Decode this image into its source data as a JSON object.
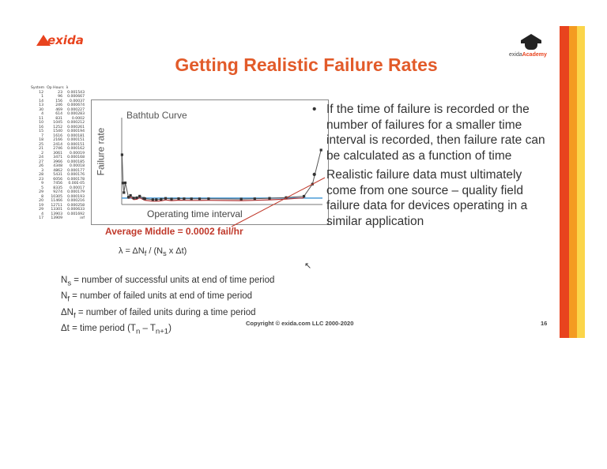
{
  "slide": {
    "title": "Getting Realistic Failure Rates",
    "logo": {
      "text": "exida"
    },
    "academy": {
      "prefix": "exida",
      "suffix": "Academy"
    },
    "stripe_colors": [
      "#e8431e",
      "#f49b20",
      "#fbd54a"
    ],
    "title_color": "#e25b2a",
    "accent_color": "#c0392b",
    "table": {
      "headers": [
        "System",
        "Op Hours",
        "λ"
      ],
      "rows": [
        [
          "12",
          "23",
          "0.001543"
        ],
        [
          "1",
          "96",
          "0.000667"
        ],
        [
          "14",
          "156",
          "0.00037"
        ],
        [
          "13",
          "246",
          "0.000674"
        ],
        [
          "30",
          "469",
          "0.000227"
        ],
        [
          "4",
          "614",
          "0.000283"
        ],
        [
          "11",
          "831",
          "0.0002"
        ],
        [
          "10",
          "1045",
          "0.000212"
        ],
        [
          "16",
          "1252",
          "0.000261"
        ],
        [
          "15",
          "1540",
          "0.000194"
        ],
        [
          "7",
          "1616",
          "0.000181"
        ],
        [
          "18",
          "2166",
          "0.000151"
        ],
        [
          "25",
          "2414",
          "0.000151"
        ],
        [
          "21",
          "2746",
          "0.000162"
        ],
        [
          "2",
          "3061",
          "0.00019"
        ],
        [
          "24",
          "3471",
          "0.000168"
        ],
        [
          "27",
          "3966",
          "0.000185"
        ],
        [
          "26",
          "4348",
          "0.00018"
        ],
        [
          "3",
          "4862",
          "0.000177"
        ],
        [
          "28",
          "5431",
          "0.000176"
        ],
        [
          "23",
          "6056",
          "0.000178"
        ],
        [
          "9",
          "7456",
          "0.00E-05"
        ],
        [
          "5",
          "8335",
          "0.00017"
        ],
        [
          "29",
          "9274",
          "0.000179"
        ],
        [
          "8",
          "10305",
          "0.000193"
        ],
        [
          "20",
          "11466",
          "0.000216"
        ],
        [
          "19",
          "12711",
          "0.000258"
        ],
        [
          "29",
          "13301",
          "0.000633"
        ],
        [
          "4",
          "13903",
          "0.001692"
        ],
        [
          "17",
          "13909",
          "inf"
        ]
      ]
    },
    "chart": {
      "title": "Bathtub Curve",
      "ylabel": "Failure rate",
      "xlabel": "Operating time interval"
    },
    "chart_data": {
      "type": "line",
      "title": "Bathtub Curve",
      "xlabel": "Operating time interval",
      "ylabel": "Failure rate",
      "series": [
        {
          "values": [
            0.001543,
            0.000667,
            0.00037,
            0.000674,
            0.000227,
            0.000283,
            0.0002,
            0.000212,
            0.000261,
            0.000194,
            0.000181,
            0.000151,
            0.000151,
            0.000162,
            0.00019,
            0.000168,
            0.000185,
            0.00018,
            0.000177,
            0.000176,
            0.000178,
            0.00017,
            0.000179,
            0.000193,
            0.000216,
            0.000258,
            0.000633,
            0.001692
          ],
          "color": "#333333"
        }
      ],
      "x": [
        23,
        96,
        156,
        246,
        469,
        614,
        831,
        1045,
        1252,
        1540,
        1616,
        2166,
        2414,
        2746,
        3061,
        3471,
        3966,
        4348,
        4862,
        5431,
        6056,
        8335,
        9274,
        10305,
        11466,
        12711,
        13301,
        13903
      ],
      "average_line": 0.0002,
      "average_line_color": "#4a9bd8",
      "trend_color": "#b03030",
      "grid": false
    },
    "average_label": "Average Middle = 0.0002 fail/hr",
    "formula": "λ = ΔN",
    "formula_sub": "f",
    "formula_rest": " / (N",
    "formula_sub2": "s",
    "formula_end": " x Δt)",
    "definitions": [
      {
        "symbol": "N",
        "sub": "s",
        "text": " = number of successful units at end of time period"
      },
      {
        "symbol": "N",
        "sub": "f",
        "text": " = number of failed units at end of time period"
      },
      {
        "symbol": "ΔN",
        "sub": "f",
        "text": " = number of failed units during a time period"
      },
      {
        "symbol": "Δt",
        "sub": "",
        "text": " = time period (T",
        "sub2": "n",
        "mid": " – T",
        "sub3": "n+1",
        "end": ")"
      }
    ],
    "bullets": [
      "If the time of failure is recorded or the number of failures for a smaller time interval is recorded, then failure rate can be calculated as a function of time",
      "Realistic failure data must ultimately come from one source – quality field failure data for devices operating in a similar application"
    ],
    "copyright": "Copyright © exida.com LLC 2000-2020",
    "page_number": "16"
  }
}
